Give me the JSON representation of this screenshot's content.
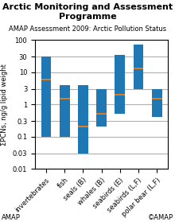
{
  "chart_data": {
    "type": "range_bar",
    "title": "Arctic Monitoring and Assessment Programme",
    "subtitle": "AMAP Assessment 2009: Arctic Pollution Status",
    "y_label": "ΣPCNs, ng/g lipid weight",
    "annotations": [
      "AMAP",
      "©AMAP"
    ],
    "categories": [
      "invertebrates",
      "fish",
      "seals (B)",
      "whales (B)",
      "seabirds (E)",
      "seabirds (L,F)",
      "polar bear (L,F)"
    ],
    "low": [
      0.1,
      0.1,
      0.03,
      0.2,
      0.5,
      3.0,
      0.4
    ],
    "high": [
      30.0,
      4.0,
      4.0,
      3.0,
      35.0,
      70.0,
      3.0
    ],
    "mean": [
      6.0,
      1.5,
      0.2,
      0.5,
      2.0,
      13.0,
      1.5
    ],
    "log": "y",
    "ylim": [
      0.01,
      100
    ],
    "yticks": [
      0.01,
      0.03,
      0.1,
      0.3,
      1,
      3,
      10,
      30,
      100
    ],
    "grid": true
  }
}
